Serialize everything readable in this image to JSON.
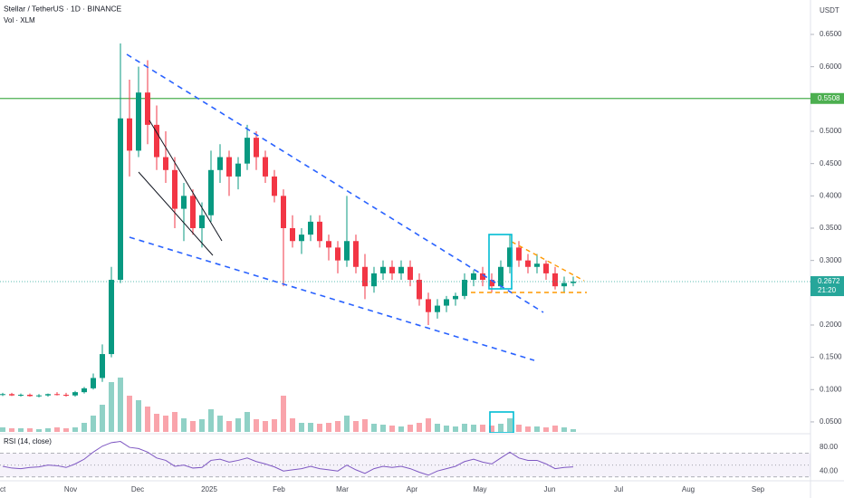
{
  "chart_data": {
    "type": "candlestick",
    "title": "Stellar / TetherUS · 1D · BINANCE",
    "subtitle": "Vol · XLM",
    "currency": "USDT",
    "up_color": "#089981",
    "down_color": "#f23645",
    "open": [
      0.092,
      0.093,
      0.091,
      0.092,
      0.09,
      0.091,
      0.093,
      0.092,
      0.091,
      0.096,
      0.102,
      0.118,
      0.155,
      0.27,
      0.52,
      0.47,
      0.56,
      0.51,
      0.46,
      0.44,
      0.38,
      0.4,
      0.35,
      0.37,
      0.44,
      0.46,
      0.43,
      0.45,
      0.49,
      0.46,
      0.43,
      0.4,
      0.35,
      0.33,
      0.34,
      0.36,
      0.33,
      0.32,
      0.3,
      0.33,
      0.29,
      0.26,
      0.28,
      0.29,
      0.28,
      0.29,
      0.27,
      0.24,
      0.22,
      0.23,
      0.24,
      0.245,
      0.27,
      0.28,
      0.27,
      0.26,
      0.29,
      0.32,
      0.3,
      0.29,
      0.295,
      0.28,
      0.26,
      0.265
    ],
    "high": [
      0.095,
      0.095,
      0.094,
      0.094,
      0.093,
      0.094,
      0.096,
      0.095,
      0.098,
      0.104,
      0.125,
      0.17,
      0.29,
      0.636,
      0.58,
      0.6,
      0.61,
      0.54,
      0.5,
      0.46,
      0.42,
      0.41,
      0.39,
      0.47,
      0.48,
      0.47,
      0.46,
      0.51,
      0.5,
      0.47,
      0.44,
      0.41,
      0.37,
      0.35,
      0.37,
      0.37,
      0.34,
      0.33,
      0.4,
      0.34,
      0.31,
      0.29,
      0.3,
      0.3,
      0.3,
      0.3,
      0.28,
      0.25,
      0.24,
      0.245,
      0.25,
      0.28,
      0.285,
      0.29,
      0.28,
      0.3,
      0.34,
      0.33,
      0.31,
      0.31,
      0.3,
      0.29,
      0.275,
      0.275
    ],
    "low": [
      0.09,
      0.09,
      0.089,
      0.089,
      0.088,
      0.089,
      0.091,
      0.089,
      0.089,
      0.094,
      0.1,
      0.112,
      0.15,
      0.265,
      0.43,
      0.46,
      0.48,
      0.44,
      0.42,
      0.35,
      0.33,
      0.34,
      0.32,
      0.36,
      0.42,
      0.4,
      0.41,
      0.44,
      0.44,
      0.42,
      0.39,
      0.26,
      0.32,
      0.31,
      0.33,
      0.32,
      0.3,
      0.28,
      0.29,
      0.28,
      0.24,
      0.25,
      0.27,
      0.27,
      0.27,
      0.26,
      0.23,
      0.2,
      0.21,
      0.22,
      0.23,
      0.24,
      0.26,
      0.26,
      0.25,
      0.255,
      0.28,
      0.29,
      0.28,
      0.28,
      0.27,
      0.255,
      0.25,
      0.26
    ],
    "close": [
      0.093,
      0.091,
      0.092,
      0.09,
      0.091,
      0.093,
      0.092,
      0.091,
      0.096,
      0.102,
      0.118,
      0.155,
      0.27,
      0.52,
      0.47,
      0.56,
      0.51,
      0.46,
      0.44,
      0.38,
      0.4,
      0.35,
      0.37,
      0.44,
      0.46,
      0.43,
      0.45,
      0.49,
      0.46,
      0.43,
      0.4,
      0.35,
      0.33,
      0.34,
      0.36,
      0.33,
      0.32,
      0.3,
      0.33,
      0.29,
      0.26,
      0.28,
      0.29,
      0.28,
      0.29,
      0.27,
      0.24,
      0.22,
      0.23,
      0.24,
      0.245,
      0.27,
      0.28,
      0.27,
      0.26,
      0.29,
      0.32,
      0.3,
      0.29,
      0.295,
      0.28,
      0.26,
      0.265,
      0.2672
    ],
    "volume": [
      5,
      4,
      4,
      4,
      3,
      4,
      5,
      4,
      5,
      10,
      18,
      30,
      55,
      60,
      40,
      35,
      28,
      20,
      18,
      22,
      15,
      12,
      14,
      25,
      18,
      12,
      15,
      22,
      14,
      12,
      14,
      40,
      15,
      10,
      10,
      9,
      10,
      12,
      18,
      12,
      14,
      9,
      8,
      7,
      6,
      8,
      10,
      15,
      9,
      7,
      6,
      9,
      8,
      8,
      7,
      9,
      15,
      8,
      6,
      6,
      5,
      7,
      5,
      3
    ],
    "rsi_title": "RSI (14, close)",
    "rsi": [
      48,
      45,
      44,
      46,
      47,
      50,
      49,
      46,
      52,
      60,
      72,
      82,
      88,
      90,
      80,
      78,
      72,
      62,
      58,
      48,
      50,
      45,
      46,
      58,
      60,
      55,
      58,
      62,
      56,
      52,
      47,
      40,
      42,
      44,
      48,
      44,
      42,
      40,
      50,
      42,
      36,
      44,
      48,
      46,
      48,
      44,
      38,
      33,
      40,
      44,
      48,
      56,
      60,
      55,
      52,
      62,
      72,
      62,
      58,
      58,
      52,
      44,
      46,
      47
    ],
    "rsi_color": "#7e57c2",
    "rsi_levels": [
      70,
      50,
      30
    ],
    "rsi_ylim": [
      25,
      100
    ],
    "rsi_ticks": [
      {
        "value": 80,
        "label": "80.00"
      },
      {
        "value": 40,
        "label": "40.00"
      }
    ],
    "ylim": [
      0.0331,
      0.7033
    ],
    "yticks": [
      {
        "value": 0.05,
        "label": "0.0500"
      },
      {
        "value": 0.1,
        "label": "0.1000"
      },
      {
        "value": 0.15,
        "label": "0.1500"
      },
      {
        "value": 0.2,
        "label": "0.2000"
      },
      {
        "value": 0.25,
        "label": "0.2500"
      },
      {
        "value": 0.3,
        "label": "0.3000"
      },
      {
        "value": 0.35,
        "label": "0.3500"
      },
      {
        "value": 0.4,
        "label": "0.4000"
      },
      {
        "value": 0.45,
        "label": "0.4500"
      },
      {
        "value": 0.5,
        "label": "0.5000"
      },
      {
        "value": 0.55,
        "label": "0.5500"
      },
      {
        "value": 0.6,
        "label": "0.6000"
      },
      {
        "value": 0.65,
        "label": "0.6500"
      }
    ],
    "hline": {
      "value": 0.5508,
      "label": "0.5508",
      "color": "#4caf50"
    },
    "last_price": {
      "value": 0.2672,
      "label": "0.2672",
      "color": "#26a69a"
    },
    "countdown": "21:20",
    "month_labels": [
      "Oct",
      "Nov",
      "Dec",
      "2025",
      "Feb",
      "Mar",
      "Apr",
      "May",
      "Jun",
      "Jul",
      "Aug",
      "Sep"
    ]
  }
}
